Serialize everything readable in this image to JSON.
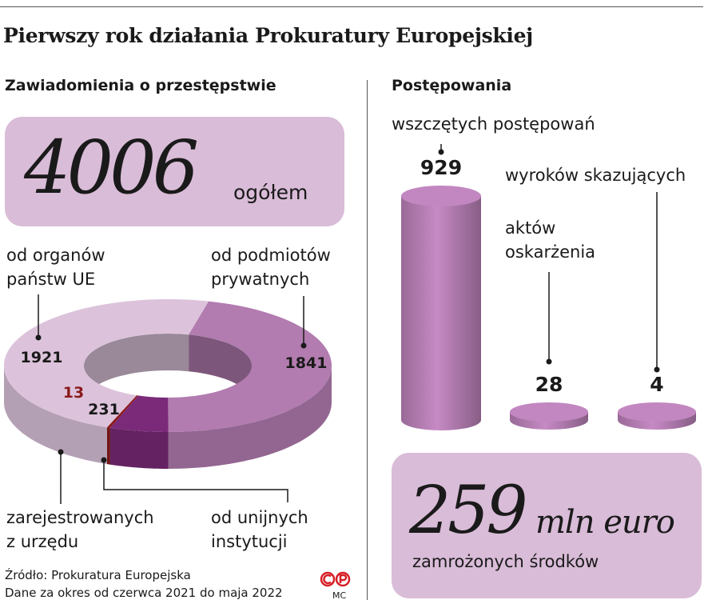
{
  "title": "Pierwszy rok działania Prokuratury Europejskiej",
  "left": {
    "heading": "Zawiadomienia o przestępstwie",
    "total_value": "4006",
    "total_unit": "ogółem",
    "label_member_states_1": "od organów",
    "label_member_states_2": "państw UE",
    "label_private_1": "od podmiotów",
    "label_private_2": "prywatnych",
    "label_ex_officio_1": "zarejestrowanych",
    "label_ex_officio_2": "z urzędu",
    "label_eu_institutions_1": "od unijnych",
    "label_eu_institutions_2": "instytucji"
  },
  "right": {
    "heading": "Postępowania",
    "label_opened": "wszczętych postępowań",
    "label_indictments_1": "aktów",
    "label_indictments_2": "oskarżenia",
    "label_convictions": "wyroków skazujących",
    "frozen_value": "259",
    "frozen_unit": "mln euro",
    "frozen_caption": "zamrożonych środków"
  },
  "source": "Źródło: Prokuratura Europejska",
  "period": "Dane za okres od czerwca 2021 do maja 2022",
  "logo_initials": "MC",
  "colors": {
    "box": "#d9bcd8",
    "ring_light": "#dcc3db",
    "ring_mid": "#b27cb0",
    "ring_eu": "#7a2a78",
    "ring_ex_officio": "#8b1a1a",
    "cylinder": "#b47db2",
    "logo": "#d61f26"
  },
  "chart_data": [
    {
      "type": "pie",
      "categories": [
        "od organów państw UE",
        "od podmiotów prywatnych",
        "od unijnych instytucji",
        "zarejestrowanych z urzędu"
      ],
      "values": [
        1921,
        1841,
        231,
        13
      ],
      "labels": [
        "1921",
        "1841",
        "231",
        "13"
      ],
      "colors": [
        "#dcc3db",
        "#b27cb0",
        "#7a2a78",
        "#8b1a1a"
      ]
    },
    {
      "type": "bar",
      "categories": [
        "wszczętych postępowań",
        "aktów oskarżenia",
        "wyroków skazujących"
      ],
      "values": [
        929,
        28,
        4
      ],
      "labels": [
        "929",
        "28",
        "4"
      ]
    }
  ]
}
